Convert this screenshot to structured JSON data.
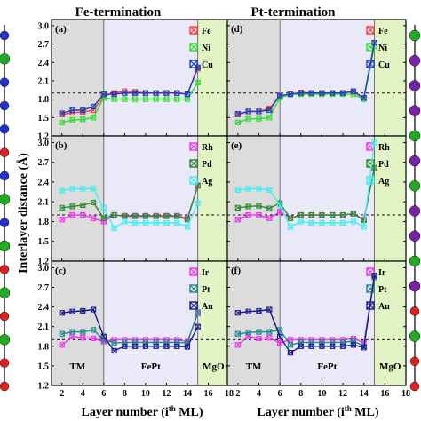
{
  "chart_data": [
    {
      "type": "line",
      "panel": "(a)",
      "column": "Fe-termination",
      "xlim": [
        1,
        18
      ],
      "ylim": [
        1.2,
        3.1
      ],
      "reference_y": 1.9,
      "series": [
        {
          "name": "Fe",
          "color": "#ff3b3b",
          "marker": "x-square",
          "x": [
            2,
            3,
            4,
            5,
            6,
            7,
            8,
            9,
            10,
            11,
            12,
            13,
            14,
            15
          ],
          "y": [
            1.55,
            1.58,
            1.59,
            1.62,
            1.85,
            1.9,
            1.93,
            1.92,
            1.9,
            1.9,
            1.9,
            1.9,
            1.88,
            2.3
          ]
        },
        {
          "name": "Ni",
          "color": "#33dd33",
          "marker": "x-square",
          "x": [
            2,
            3,
            4,
            5,
            6,
            7,
            8,
            9,
            10,
            11,
            12,
            13,
            14,
            15
          ],
          "y": [
            1.42,
            1.46,
            1.47,
            1.5,
            1.82,
            1.8,
            1.8,
            1.8,
            1.8,
            1.8,
            1.8,
            1.8,
            1.8,
            2.07
          ]
        },
        {
          "name": "Cu",
          "color": "#1f3fbf",
          "marker": "x-square",
          "x": [
            2,
            3,
            4,
            5,
            6,
            7,
            8,
            9,
            10,
            11,
            12,
            13,
            14,
            15
          ],
          "y": [
            1.57,
            1.62,
            1.62,
            1.68,
            1.88,
            1.88,
            1.9,
            1.9,
            1.9,
            1.9,
            1.9,
            1.9,
            1.88,
            2.32
          ]
        }
      ]
    },
    {
      "type": "line",
      "panel": "(b)",
      "column": "Fe-termination",
      "xlim": [
        1,
        18
      ],
      "ylim": [
        1.2,
        3.1
      ],
      "reference_y": 1.9,
      "series": [
        {
          "name": "Rh",
          "color": "#ee33ee",
          "marker": "x-square",
          "x": [
            2,
            3,
            4,
            5,
            6,
            7,
            8,
            9,
            10,
            11,
            12,
            13,
            14,
            15
          ],
          "y": [
            1.83,
            1.9,
            1.9,
            1.85,
            1.8,
            1.9,
            1.89,
            1.89,
            1.89,
            1.89,
            1.89,
            1.89,
            1.85,
            2.34
          ]
        },
        {
          "name": "Pd",
          "color": "#2d8a2d",
          "marker": "x-square",
          "x": [
            2,
            3,
            4,
            5,
            6,
            7,
            8,
            9,
            10,
            11,
            12,
            13,
            14,
            15
          ],
          "y": [
            2.01,
            2.03,
            2.05,
            2.09,
            1.85,
            1.9,
            1.88,
            1.88,
            1.88,
            1.88,
            1.88,
            1.88,
            1.83,
            2.35
          ]
        },
        {
          "name": "Ag",
          "color": "#44eeee",
          "marker": "x-square",
          "x": [
            2,
            3,
            4,
            5,
            6,
            7,
            8,
            9,
            10,
            11,
            12,
            13,
            14,
            15
          ],
          "y": [
            2.27,
            2.3,
            2.3,
            2.3,
            2.01,
            1.7,
            1.8,
            1.78,
            1.78,
            1.78,
            1.78,
            1.78,
            1.72,
            2.08
          ]
        }
      ]
    },
    {
      "type": "line",
      "panel": "(c)",
      "column": "Fe-termination",
      "xlim": [
        1,
        18
      ],
      "ylim": [
        1.2,
        3.1
      ],
      "reference_y": 1.9,
      "series": [
        {
          "name": "Ir",
          "color": "#ee33ee",
          "marker": "x-square",
          "x": [
            2,
            3,
            4,
            5,
            6,
            7,
            8,
            9,
            10,
            11,
            12,
            13,
            14,
            15
          ],
          "y": [
            1.82,
            1.95,
            1.93,
            1.92,
            1.87,
            1.9,
            1.9,
            1.9,
            1.9,
            1.9,
            1.9,
            1.9,
            1.87,
            2.3
          ]
        },
        {
          "name": "Pt",
          "color": "#1f8a8a",
          "marker": "x-square",
          "x": [
            2,
            3,
            4,
            5,
            6,
            7,
            8,
            9,
            10,
            11,
            12,
            13,
            14,
            15
          ],
          "y": [
            1.99,
            2.02,
            2.02,
            2.05,
            1.9,
            1.85,
            1.86,
            1.86,
            1.86,
            1.86,
            1.86,
            1.86,
            1.85,
            2.32
          ]
        },
        {
          "name": "Au",
          "color": "#1a1a8c",
          "marker": "x-square",
          "x": [
            2,
            3,
            4,
            5,
            6,
            7,
            8,
            9,
            10,
            11,
            12,
            13,
            14,
            15
          ],
          "y": [
            2.31,
            2.33,
            2.34,
            2.36,
            1.95,
            1.73,
            1.8,
            1.8,
            1.8,
            1.8,
            1.8,
            1.8,
            1.79,
            2.1
          ]
        }
      ]
    },
    {
      "type": "line",
      "panel": "(d)",
      "column": "Pt-termination",
      "xlim": [
        1,
        18
      ],
      "ylim": [
        1.2,
        3.1
      ],
      "reference_y": 1.9,
      "series": [
        {
          "name": "Fe",
          "color": "#ff3b3b",
          "marker": "x-square",
          "x": [
            2,
            3,
            4,
            5,
            6,
            7,
            8,
            9,
            10,
            11,
            12,
            13,
            14,
            15
          ],
          "y": [
            1.55,
            1.6,
            1.6,
            1.65,
            1.85,
            1.88,
            1.91,
            1.9,
            1.9,
            1.9,
            1.9,
            1.92,
            1.82,
            2.72
          ]
        },
        {
          "name": "Ni",
          "color": "#33dd33",
          "marker": "x-square",
          "x": [
            2,
            3,
            4,
            5,
            6,
            7,
            8,
            9,
            10,
            11,
            12,
            13,
            14,
            15
          ],
          "y": [
            1.42,
            1.48,
            1.48,
            1.5,
            1.82,
            1.88,
            1.88,
            1.88,
            1.88,
            1.88,
            1.88,
            1.88,
            1.8,
            2.66
          ]
        },
        {
          "name": "Cu",
          "color": "#1f3fbf",
          "marker": "x-square",
          "x": [
            2,
            3,
            4,
            5,
            6,
            7,
            8,
            9,
            10,
            11,
            12,
            13,
            14,
            15
          ],
          "y": [
            1.56,
            1.6,
            1.6,
            1.62,
            1.86,
            1.88,
            1.9,
            1.9,
            1.9,
            1.9,
            1.9,
            1.93,
            1.82,
            2.72
          ]
        }
      ]
    },
    {
      "type": "line",
      "panel": "(e)",
      "column": "Pt-termination",
      "xlim": [
        1,
        18
      ],
      "ylim": [
        1.2,
        3.1
      ],
      "reference_y": 1.9,
      "series": [
        {
          "name": "Rh",
          "color": "#ee33ee",
          "marker": "x-square",
          "x": [
            2,
            3,
            4,
            5,
            6,
            7,
            8,
            9,
            10,
            11,
            12,
            13,
            14,
            15
          ],
          "y": [
            1.83,
            1.9,
            1.9,
            1.85,
            1.95,
            1.85,
            1.9,
            1.9,
            1.9,
            1.9,
            1.9,
            1.92,
            1.83,
            2.62
          ]
        },
        {
          "name": "Pd",
          "color": "#2d8a2d",
          "marker": "x-square",
          "x": [
            2,
            3,
            4,
            5,
            6,
            7,
            8,
            9,
            10,
            11,
            12,
            13,
            14,
            15
          ],
          "y": [
            2.01,
            2.03,
            2.04,
            2.0,
            2.08,
            1.85,
            1.9,
            1.9,
            1.9,
            1.9,
            1.9,
            1.92,
            1.82,
            2.62
          ]
        },
        {
          "name": "Ag",
          "color": "#44eeee",
          "marker": "x-square",
          "x": [
            2,
            3,
            4,
            5,
            6,
            7,
            8,
            9,
            10,
            11,
            12,
            13,
            14,
            15
          ],
          "y": [
            2.28,
            2.3,
            2.3,
            2.28,
            2.05,
            1.72,
            1.8,
            1.78,
            1.78,
            1.78,
            1.78,
            1.8,
            1.72,
            3.0
          ]
        }
      ]
    },
    {
      "type": "line",
      "panel": "(f)",
      "column": "Pt-termination",
      "xlim": [
        1,
        18
      ],
      "ylim": [
        1.2,
        3.1
      ],
      "reference_y": 1.9,
      "series": [
        {
          "name": "Ir",
          "color": "#ee33ee",
          "marker": "x-square",
          "x": [
            2,
            3,
            4,
            5,
            6,
            7,
            8,
            9,
            10,
            11,
            12,
            13,
            14,
            15
          ],
          "y": [
            1.82,
            1.95,
            1.92,
            1.93,
            1.85,
            1.9,
            1.9,
            1.9,
            1.9,
            1.9,
            1.9,
            1.92,
            1.85,
            2.85
          ]
        },
        {
          "name": "Pt",
          "color": "#1f8a8a",
          "marker": "x-square",
          "x": [
            2,
            3,
            4,
            5,
            6,
            7,
            8,
            9,
            10,
            11,
            12,
            13,
            14,
            15
          ],
          "y": [
            1.99,
            2.01,
            2.02,
            2.02,
            2.05,
            1.82,
            1.86,
            1.86,
            1.86,
            1.86,
            1.86,
            1.88,
            1.8,
            2.85
          ]
        },
        {
          "name": "Au",
          "color": "#1a1a8c",
          "marker": "x-square",
          "x": [
            2,
            3,
            4,
            5,
            6,
            7,
            8,
            9,
            10,
            11,
            12,
            13,
            14,
            15
          ],
          "y": [
            2.31,
            2.33,
            2.34,
            2.36,
            1.95,
            1.7,
            1.8,
            1.8,
            1.8,
            1.8,
            1.8,
            1.82,
            1.78,
            2.88
          ]
        }
      ]
    }
  ],
  "labels": {
    "title_left": "Fe-termination",
    "title_right": "Pt-termination",
    "ylabel": "Interlayer distance (Å)",
    "xlabel_left": "Layer number (i",
    "xlabel_sup": "th",
    "xlabel_right": " ML)",
    "region_tm": "TM",
    "region_fept": "FePt",
    "region_mgo": "MgO"
  },
  "axes": {
    "yticks": [
      "1.2",
      "1.5",
      "1.8",
      "2.1",
      "2.4",
      "2.7",
      "3.0"
    ],
    "ytick_values": [
      1.2,
      1.5,
      1.8,
      2.1,
      2.4,
      2.7,
      3.0
    ],
    "xticks": [
      "2",
      "4",
      "6",
      "8",
      "10",
      "12",
      "14",
      "16",
      "18"
    ],
    "xtick_values": [
      2,
      4,
      6,
      8,
      10,
      12,
      14,
      16,
      18
    ]
  },
  "colors": {
    "region_tm": "#dcdcdc",
    "region_fept": "#e9e9f8",
    "region_mgo": "#e2f3c4",
    "axis": "#000000"
  },
  "side_decoration": {
    "atom_colors_left": [
      "#2233cc",
      "#22aa22",
      "#2233cc",
      "#2233cc",
      "#2233cc",
      "#dd2222",
      "#2233cc",
      "#22aa22",
      "#2233cc",
      "#22aa22",
      "#dd2222",
      "#22aa22",
      "#dd2222",
      "#22aa22",
      "#dd2222",
      "#dd2222"
    ],
    "atom_colors_right": [
      "#22aa22",
      "#7722aa",
      "#7722aa",
      "#7722aa",
      "#22aa22",
      "#7722aa",
      "#22aa22",
      "#7722aa",
      "#7722aa",
      "#22aa22",
      "#7722aa",
      "#dd2222",
      "#22aa22",
      "#dd2222",
      "#dd2222"
    ]
  }
}
